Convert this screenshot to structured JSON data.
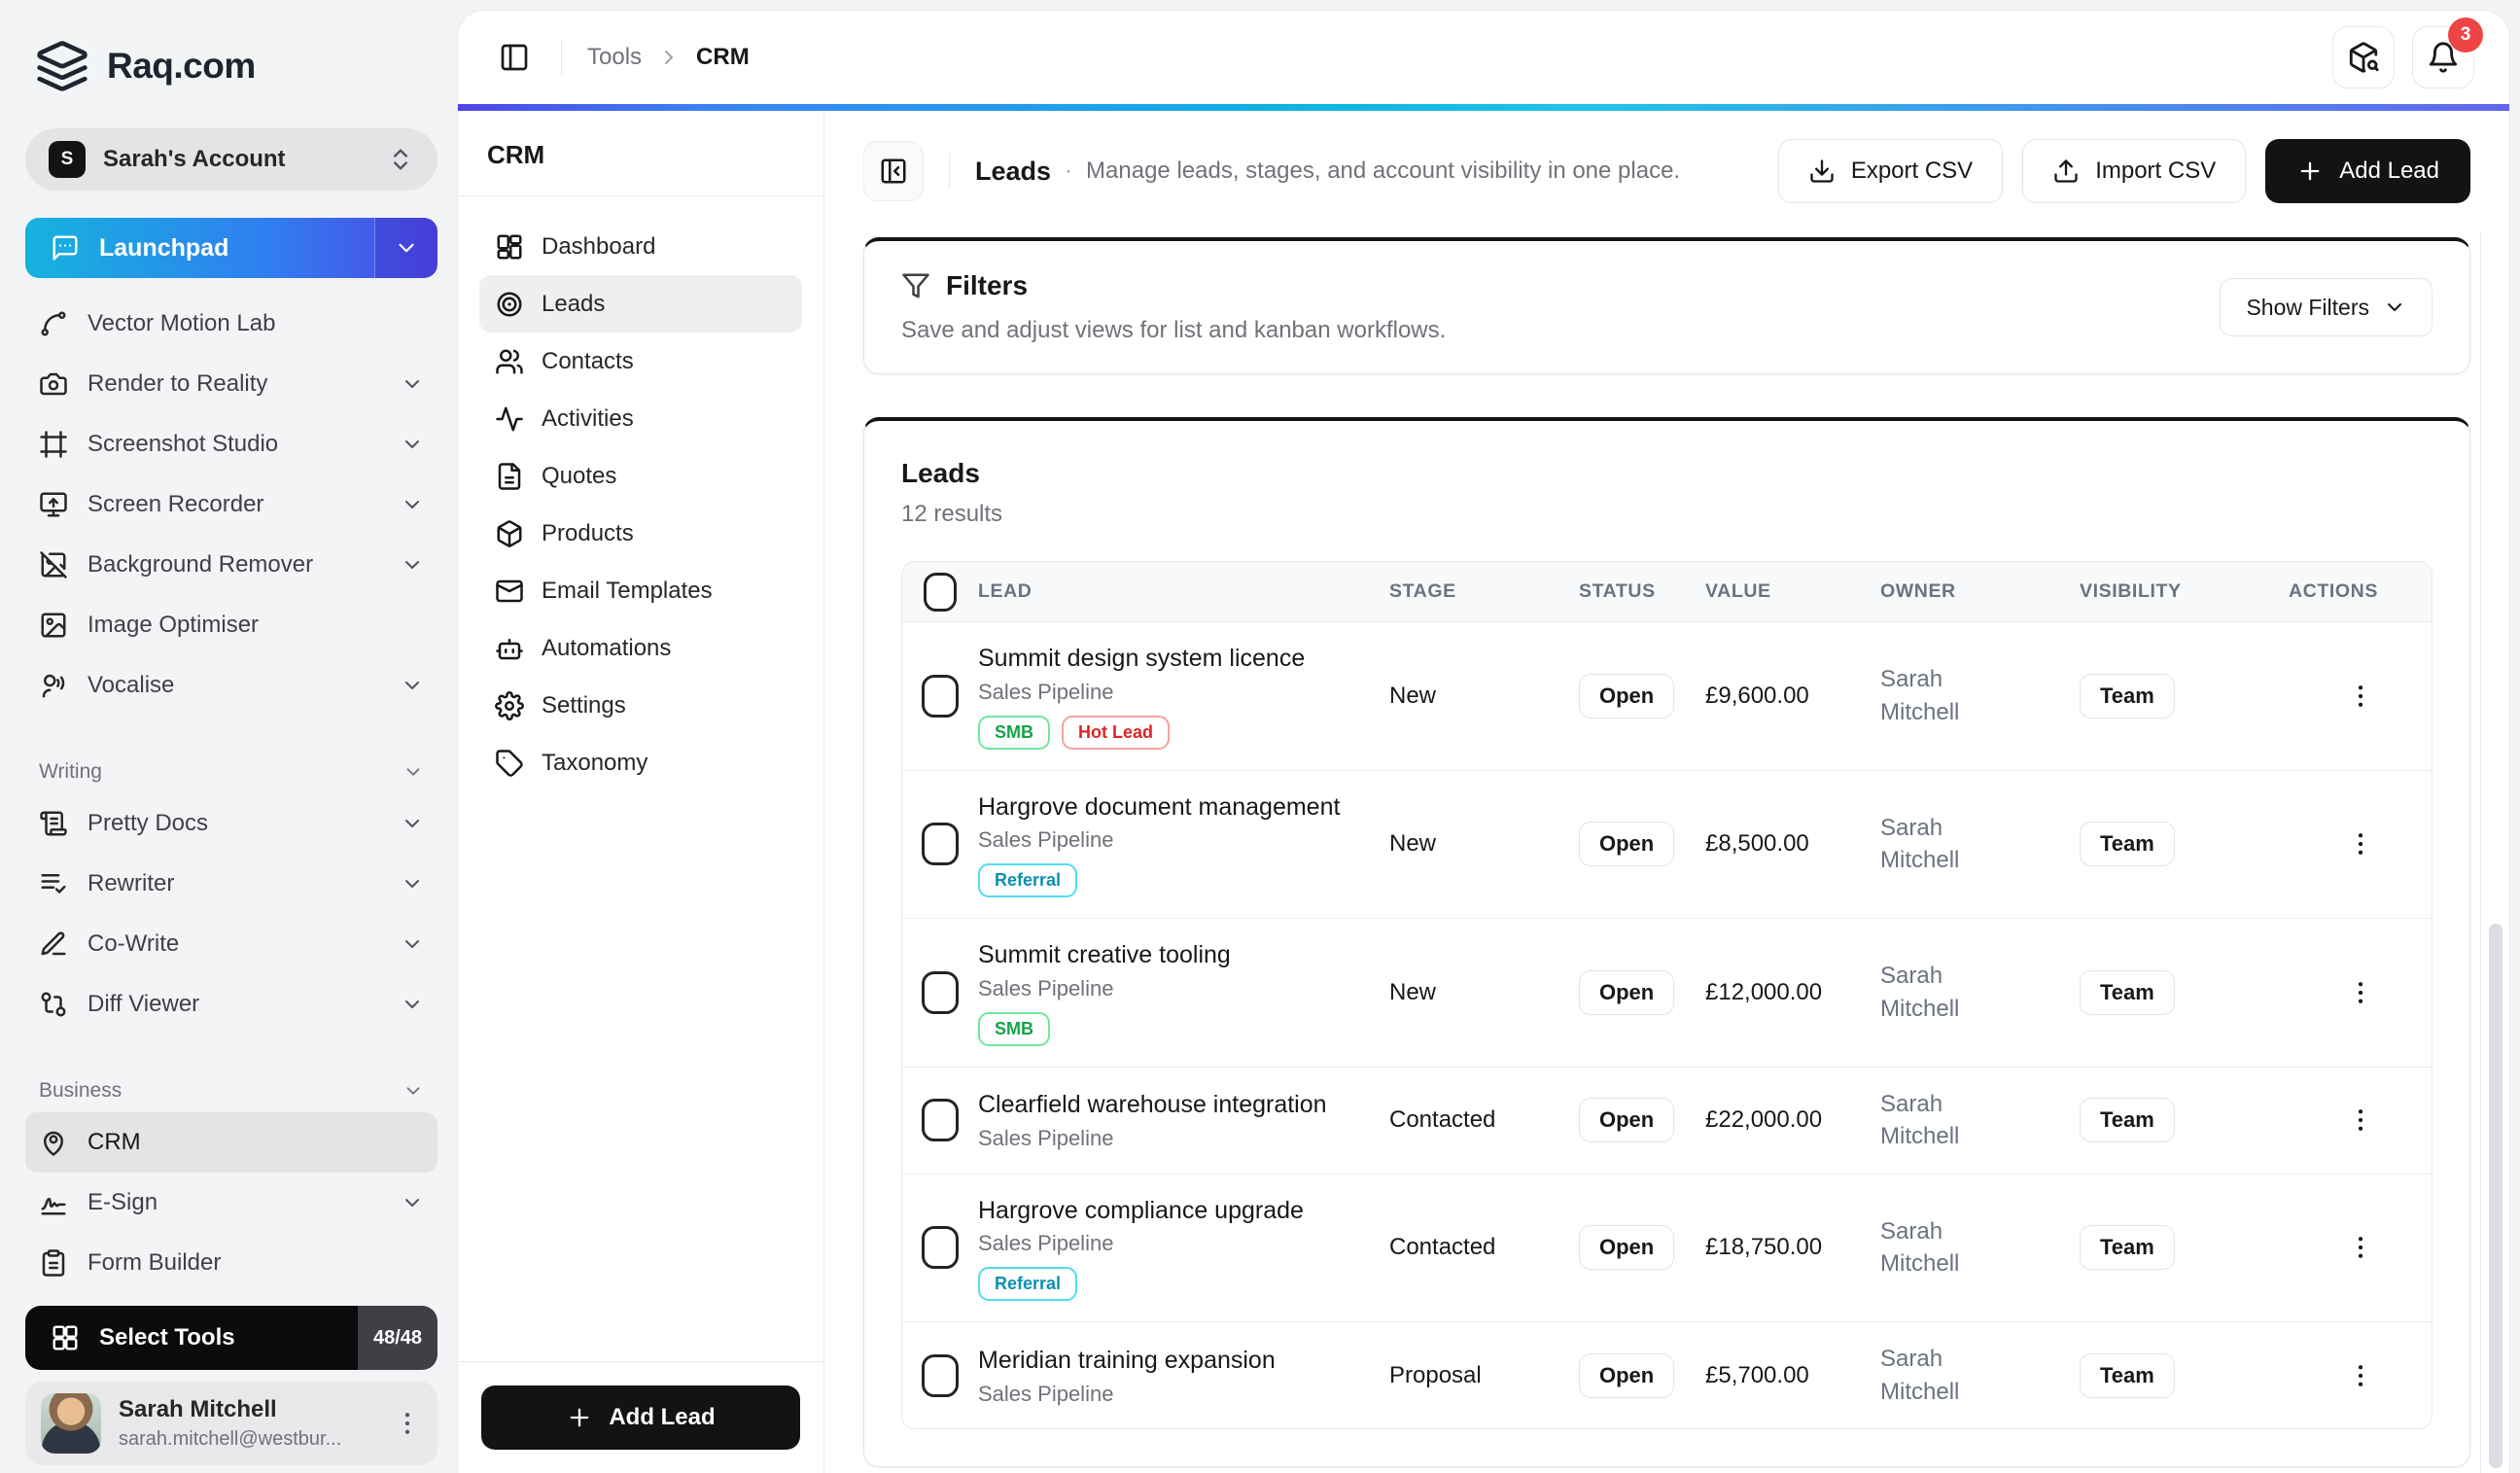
{
  "brand": {
    "name": "Raq.com"
  },
  "account": {
    "label": "Sarah's Account",
    "avatar_initial": "S"
  },
  "launchpad": {
    "label": "Launchpad"
  },
  "sidebar": {
    "tools": [
      {
        "label": "Vector Motion Lab",
        "icon": "spline",
        "chevron": false
      },
      {
        "label": "Render to Reality",
        "icon": "camera",
        "chevron": true
      },
      {
        "label": "Screenshot Studio",
        "icon": "frame",
        "chevron": true
      },
      {
        "label": "Screen Recorder",
        "icon": "monitor-up",
        "chevron": true
      },
      {
        "label": "Background Remover",
        "icon": "image-off",
        "chevron": true
      },
      {
        "label": "Image Optimiser",
        "icon": "image",
        "chevron": false
      },
      {
        "label": "Vocalise",
        "icon": "voice",
        "chevron": true
      }
    ],
    "sections": [
      {
        "label": "Writing",
        "items": [
          {
            "label": "Pretty Docs",
            "icon": "scroll-text",
            "chevron": true
          },
          {
            "label": "Rewriter",
            "icon": "list-check",
            "chevron": true
          },
          {
            "label": "Co-Write",
            "icon": "pen-line",
            "chevron": true
          },
          {
            "label": "Diff Viewer",
            "icon": "git-compare",
            "chevron": true
          }
        ]
      },
      {
        "label": "Business",
        "items": [
          {
            "label": "CRM",
            "icon": "pin-user",
            "chevron": false,
            "active": true
          },
          {
            "label": "E-Sign",
            "icon": "signature",
            "chevron": true
          },
          {
            "label": "Form Builder",
            "icon": "clipboard-list",
            "chevron": false
          }
        ]
      }
    ],
    "select_tools": {
      "label": "Select Tools",
      "count": "48/48"
    },
    "profile": {
      "name": "Sarah Mitchell",
      "email": "sarah.mitchell@westbur..."
    }
  },
  "topbar": {
    "breadcrumb": {
      "parent": "Tools",
      "current": "CRM"
    },
    "notification_count": "3"
  },
  "crm_nav": {
    "title": "CRM",
    "items": [
      {
        "label": "Dashboard",
        "icon": "dashboard"
      },
      {
        "label": "Leads",
        "icon": "target",
        "active": true
      },
      {
        "label": "Contacts",
        "icon": "users"
      },
      {
        "label": "Activities",
        "icon": "activity"
      },
      {
        "label": "Quotes",
        "icon": "file-text"
      },
      {
        "label": "Products",
        "icon": "package"
      },
      {
        "label": "Email Templates",
        "icon": "mail"
      },
      {
        "label": "Automations",
        "icon": "bot"
      },
      {
        "label": "Settings",
        "icon": "gear"
      },
      {
        "label": "Taxonomy",
        "icon": "tag"
      }
    ],
    "add_lead_label": "Add Lead"
  },
  "page": {
    "title": "Leads",
    "separator": "·",
    "subtitle": "Manage leads, stages, and account visibility in one place.",
    "export_label": "Export CSV",
    "import_label": "Import CSV",
    "add_lead_label": "Add Lead"
  },
  "filters_card": {
    "title": "Filters",
    "subtitle": "Save and adjust views for list and kanban workflows.",
    "show_filters_label": "Show Filters"
  },
  "leads_card": {
    "title": "Leads",
    "results_text": "12 results",
    "columns": [
      "LEAD",
      "STAGE",
      "STATUS",
      "VALUE",
      "OWNER",
      "VISIBILITY",
      "ACTIONS"
    ],
    "rows": [
      {
        "name": "Summit design system licence",
        "pipeline": "Sales Pipeline",
        "tags": [
          {
            "label": "SMB",
            "color": "green"
          },
          {
            "label": "Hot Lead",
            "color": "red"
          }
        ],
        "stage": "New",
        "status": "Open",
        "value": "£9,600.00",
        "owner": "Sarah Mitchell",
        "visibility": "Team"
      },
      {
        "name": "Hargrove document management",
        "pipeline": "Sales Pipeline",
        "tags": [
          {
            "label": "Referral",
            "color": "cyan"
          }
        ],
        "stage": "New",
        "status": "Open",
        "value": "£8,500.00",
        "owner": "Sarah Mitchell",
        "visibility": "Team"
      },
      {
        "name": "Summit creative tooling",
        "pipeline": "Sales Pipeline",
        "tags": [
          {
            "label": "SMB",
            "color": "green"
          }
        ],
        "stage": "New",
        "status": "Open",
        "value": "£12,000.00",
        "owner": "Sarah Mitchell",
        "visibility": "Team"
      },
      {
        "name": "Clearfield warehouse integration",
        "pipeline": "Sales Pipeline",
        "tags": [],
        "stage": "Contacted",
        "status": "Open",
        "value": "£22,000.00",
        "owner": "Sarah Mitchell",
        "visibility": "Team"
      },
      {
        "name": "Hargrove compliance upgrade",
        "pipeline": "Sales Pipeline",
        "tags": [
          {
            "label": "Referral",
            "color": "cyan"
          }
        ],
        "stage": "Contacted",
        "status": "Open",
        "value": "£18,750.00",
        "owner": "Sarah Mitchell",
        "visibility": "Team"
      },
      {
        "name": "Meridian training expansion",
        "pipeline": "Sales Pipeline",
        "tags": [],
        "stage": "Proposal",
        "status": "Open",
        "value": "£5,700.00",
        "owner": "Sarah Mitchell",
        "visibility": "Team"
      }
    ]
  },
  "colors": {
    "topbar_gradient": [
      "#4f46e5",
      "#3b82f6",
      "#0cb4e2",
      "#6366f1"
    ],
    "launchpad_gradient": [
      "#16b3de",
      "#2f7ff0",
      "#4f46e5"
    ],
    "tag_green": "#16a34a",
    "tag_red": "#dc2626",
    "tag_cyan": "#0891b2",
    "badge_red": "#ef4444",
    "dark_button": "#131316"
  }
}
